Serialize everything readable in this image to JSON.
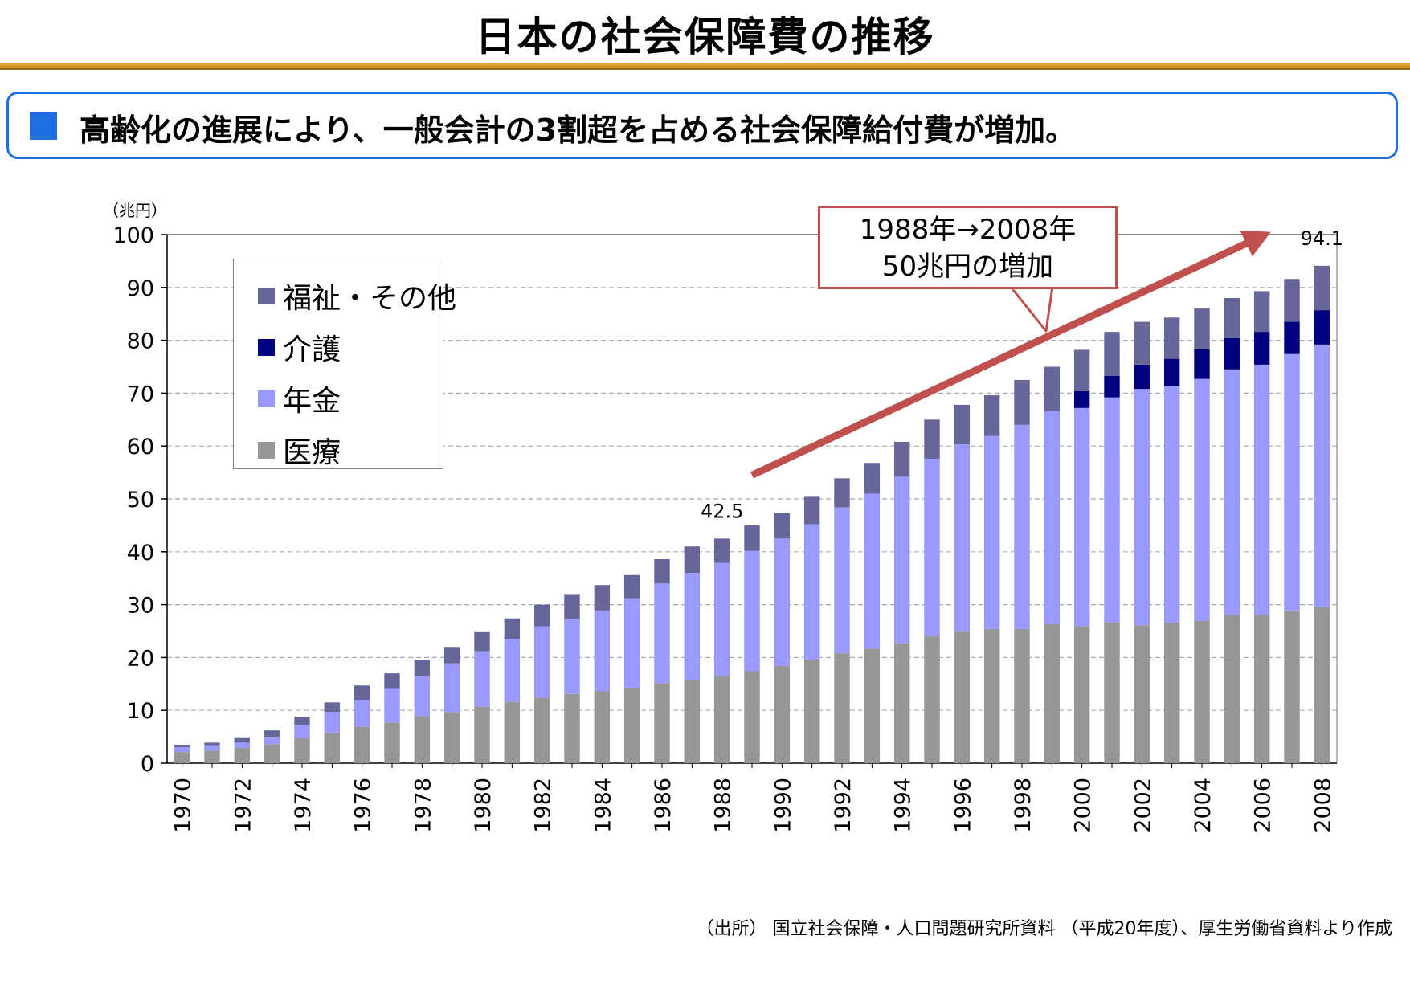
{
  "page": {
    "title": "日本の社会保障費の推移",
    "banner": "高齢化の進展により、一般会計の3割超を占める社会保障給付費が増加。",
    "source": "（出所） 国立社会保障・人口問題研究所資料 （平成20年度）、厚生労働省資料より作成"
  },
  "callout": {
    "line1": "1988年→2008年",
    "line2": "50兆円の増加"
  },
  "colors": {
    "medical": "#969696",
    "pension": "#9999ff",
    "care": "#000080",
    "welfare": "#666699",
    "arrow": "#c0504d",
    "banner": "#1f6fe0"
  },
  "chart_data": {
    "type": "bar",
    "stacked": true,
    "unit_label": "（兆円）",
    "ylim": [
      0,
      100
    ],
    "yticks": [
      0,
      10,
      20,
      30,
      40,
      50,
      60,
      70,
      80,
      90,
      100
    ],
    "grid": true,
    "legend_position": "top-left",
    "x": [
      1970,
      1971,
      1972,
      1973,
      1974,
      1975,
      1976,
      1977,
      1978,
      1979,
      1980,
      1981,
      1982,
      1983,
      1984,
      1985,
      1986,
      1987,
      1988,
      1989,
      1990,
      1991,
      1992,
      1993,
      1994,
      1995,
      1996,
      1997,
      1998,
      1999,
      2000,
      2001,
      2002,
      2003,
      2004,
      2005,
      2006,
      2007,
      2008
    ],
    "xtick_labels": [
      "1970",
      "1972",
      "1974",
      "1976",
      "1978",
      "1980",
      "1982",
      "1984",
      "1986",
      "1988",
      "1990",
      "1992",
      "1994",
      "1996",
      "1998",
      "2000",
      "2002",
      "2004",
      "2006",
      "2008"
    ],
    "series": [
      {
        "name": "医療",
        "key": "medical",
        "values": [
          2.1,
          2.4,
          2.9,
          3.6,
          4.8,
          5.8,
          6.9,
          7.7,
          8.9,
          9.7,
          10.7,
          11.6,
          12.4,
          13.1,
          13.6,
          14.3,
          15.1,
          15.8,
          16.5,
          17.4,
          18.4,
          19.6,
          20.8,
          21.7,
          22.7,
          24.0,
          24.9,
          25.4,
          25.4,
          26.3,
          25.9,
          26.7,
          26.1,
          26.6,
          26.9,
          28.1,
          28.1,
          28.9,
          29.6
        ]
      },
      {
        "name": "年金",
        "key": "pension",
        "values": [
          0.9,
          1.0,
          1.0,
          1.4,
          2.5,
          3.9,
          5.1,
          6.5,
          7.6,
          9.2,
          10.5,
          11.9,
          13.5,
          14.1,
          15.3,
          16.9,
          18.9,
          20.2,
          21.4,
          22.8,
          24.1,
          25.6,
          27.6,
          29.3,
          31.5,
          33.6,
          35.4,
          36.5,
          38.6,
          40.3,
          41.3,
          42.5,
          44.7,
          44.8,
          45.8,
          46.4,
          47.3,
          48.5,
          49.6
        ]
      },
      {
        "name": "介護",
        "key": "care",
        "values": [
          0,
          0,
          0,
          0,
          0,
          0,
          0,
          0,
          0,
          0,
          0,
          0,
          0,
          0,
          0,
          0,
          0,
          0,
          0,
          0,
          0,
          0,
          0,
          0,
          0,
          0,
          0,
          0,
          0,
          0,
          3.2,
          4.1,
          4.6,
          5.1,
          5.6,
          5.9,
          6.2,
          6.1,
          6.5
        ]
      },
      {
        "name": "福祉・その他",
        "key": "welfare",
        "values": [
          0.5,
          0.5,
          1.0,
          1.2,
          1.5,
          1.8,
          2.7,
          2.8,
          3.1,
          3.1,
          3.6,
          3.9,
          4.1,
          4.8,
          4.8,
          4.4,
          4.6,
          5.0,
          4.6,
          4.8,
          4.8,
          5.2,
          5.5,
          5.8,
          6.6,
          7.4,
          7.5,
          7.7,
          8.5,
          8.4,
          7.8,
          8.3,
          8.1,
          7.8,
          7.7,
          7.6,
          7.7,
          8.1,
          8.4
        ]
      }
    ],
    "data_labels": [
      {
        "x": 1988,
        "text": "42.5"
      },
      {
        "x": 2008,
        "text": "94.1"
      }
    ]
  }
}
